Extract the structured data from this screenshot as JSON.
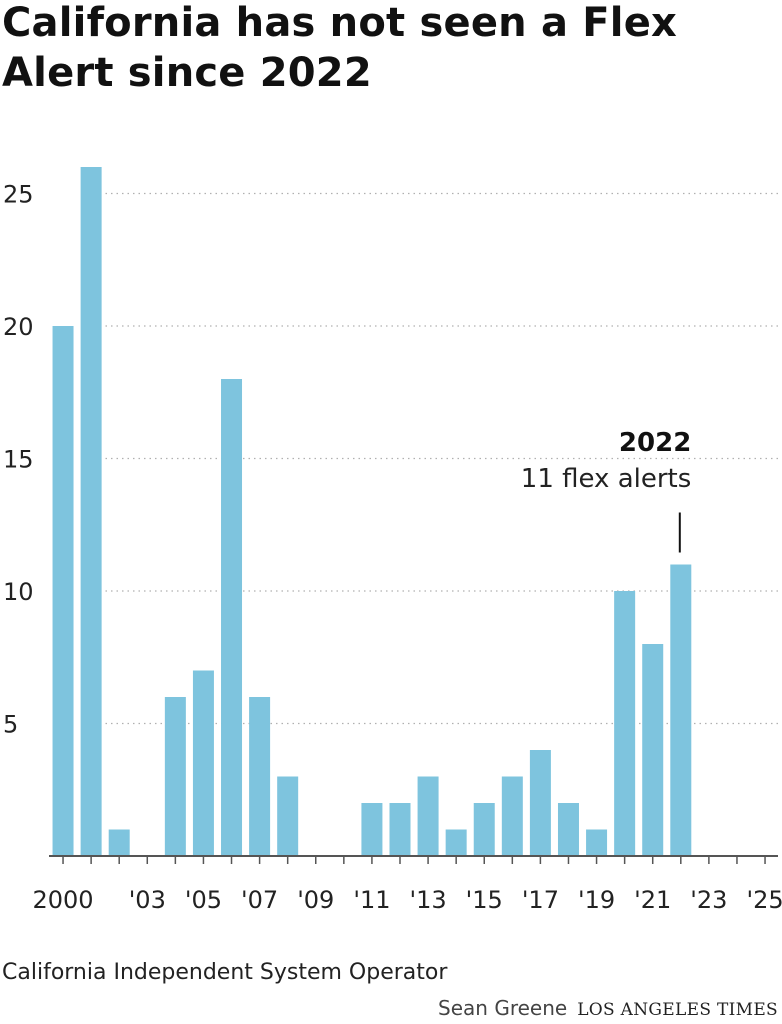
{
  "title": "California has not seen a Flex Alert since 2022",
  "source": "California Independent System Operator",
  "byline": "Sean Greene",
  "publisher": "LOS ANGELES TIMES",
  "colors": {
    "bar": "#7ec4de",
    "grid": "#b0b0b0",
    "axis": "#555555",
    "text": "#222222"
  },
  "chart_data": {
    "type": "bar",
    "title": "California has not seen a Flex Alert since 2022",
    "xlabel": "",
    "ylabel": "",
    "ylim": [
      0,
      25
    ],
    "yticks": [
      5,
      10,
      15,
      20,
      25
    ],
    "grid": true,
    "categories": [
      2000,
      2001,
      2002,
      2003,
      2004,
      2005,
      2006,
      2007,
      2008,
      2009,
      2010,
      2011,
      2012,
      2013,
      2014,
      2015,
      2016,
      2017,
      2018,
      2019,
      2020,
      2021,
      2022,
      2023,
      2024,
      2025
    ],
    "values": [
      20,
      26,
      1,
      0,
      6,
      7,
      18,
      6,
      3,
      0,
      0,
      2,
      2,
      3,
      1,
      2,
      3,
      4,
      2,
      1,
      10,
      8,
      11,
      0,
      0,
      0
    ],
    "x_tick_labels": [
      "2000",
      "'03",
      "'05",
      "'07",
      "'09",
      "'11",
      "'13",
      "'15",
      "'17",
      "'19",
      "'21",
      "'23",
      "'25"
    ],
    "annotation": {
      "year": 2022,
      "heading": "2022",
      "text": "11 flex alerts"
    }
  }
}
